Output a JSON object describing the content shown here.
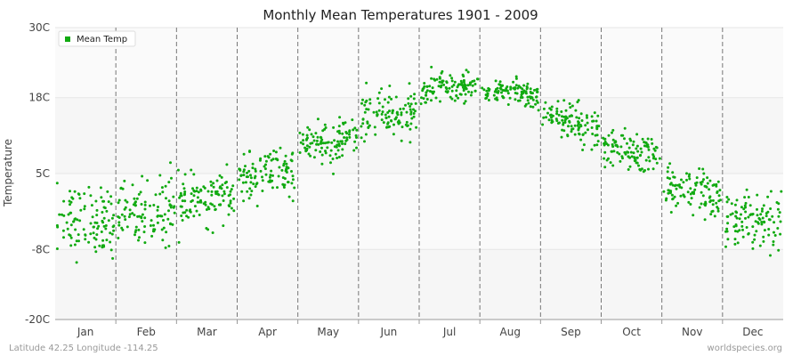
{
  "chart_data": {
    "type": "scatter",
    "title": "Monthly Mean Temperatures 1901 - 2009",
    "ylabel": "Temperature",
    "xlabel": "",
    "ylim": [
      -20,
      30
    ],
    "y_ticks": [
      "30C",
      "18C",
      "5C",
      "-8C",
      "-20C"
    ],
    "y_tick_values": [
      30,
      18,
      5,
      -8,
      -20
    ],
    "categories": [
      "Jan",
      "Feb",
      "Mar",
      "Apr",
      "May",
      "Jun",
      "Jul",
      "Aug",
      "Sep",
      "Oct",
      "Nov",
      "Dec"
    ],
    "legend": {
      "position": "top-left"
    },
    "grid": true,
    "series": [
      {
        "name": "Mean Temp",
        "color": "#11aa11",
        "points_per_month": 109,
        "monthly_mean": [
          -3.0,
          -1.5,
          0.5,
          4.5,
          10.5,
          15.0,
          20.0,
          19.0,
          14.0,
          8.5,
          1.5,
          -3.0
        ],
        "monthly_spread": [
          3.0,
          2.8,
          2.0,
          2.0,
          2.0,
          2.0,
          1.2,
          1.1,
          1.6,
          1.8,
          2.0,
          2.3
        ]
      }
    ]
  },
  "footer": {
    "left": "Latitude 42.25 Longitude -114.25",
    "right": "worldspecies.org"
  }
}
